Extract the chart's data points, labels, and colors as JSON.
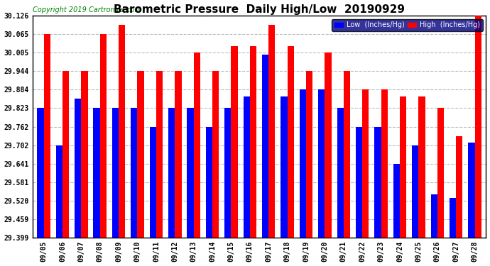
{
  "title": "Barometric Pressure  Daily High/Low  20190929",
  "copyright": "Copyright 2019 Cartronics.com",
  "legend_low": "Low  (Inches/Hg)",
  "legend_high": "High  (Inches/Hg)",
  "dates": [
    "09/05",
    "09/06",
    "09/07",
    "09/08",
    "09/09",
    "09/10",
    "09/11",
    "09/12",
    "09/13",
    "09/14",
    "09/15",
    "09/16",
    "09/17",
    "09/18",
    "09/19",
    "09/20",
    "09/21",
    "09/22",
    "09/23",
    "09/24",
    "09/25",
    "09/26",
    "09/27",
    "09/28"
  ],
  "low_values": [
    29.823,
    29.702,
    29.855,
    29.823,
    29.823,
    29.823,
    29.762,
    29.823,
    29.823,
    29.762,
    29.823,
    29.862,
    29.997,
    29.862,
    29.884,
    29.884,
    29.823,
    29.762,
    29.762,
    29.641,
    29.702,
    29.541,
    29.53,
    29.71
  ],
  "high_values": [
    30.065,
    29.944,
    29.944,
    30.065,
    30.095,
    29.944,
    29.944,
    29.944,
    30.005,
    29.944,
    30.025,
    30.025,
    30.095,
    30.025,
    29.944,
    30.005,
    29.944,
    29.884,
    29.884,
    29.862,
    29.862,
    29.823,
    29.73,
    30.126
  ],
  "yticks": [
    29.399,
    29.459,
    29.52,
    29.581,
    29.641,
    29.702,
    29.762,
    29.823,
    29.884,
    29.944,
    30.005,
    30.065,
    30.126
  ],
  "ymin": 29.399,
  "ymax": 30.126,
  "low_color": "#0000ff",
  "high_color": "#ff0000",
  "bg_color": "#ffffff",
  "grid_color": "#bbbbbb",
  "title_fontsize": 11,
  "copyright_fontsize": 7,
  "tick_fontsize": 7,
  "bar_width": 0.35
}
